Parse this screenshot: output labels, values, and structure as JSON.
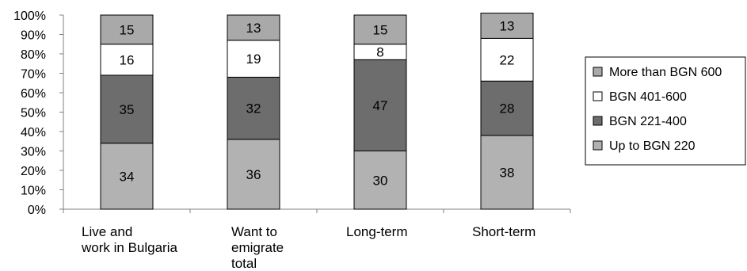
{
  "chart_data": {
    "type": "bar",
    "stacked": true,
    "percent": true,
    "categories": [
      [
        "Live and",
        "work in Bulgaria"
      ],
      [
        "Want to",
        "emigrate",
        "total"
      ],
      [
        "Long-term"
      ],
      [
        "Short-term"
      ]
    ],
    "series": [
      {
        "name": "Up to BGN 220",
        "values": [
          34,
          36,
          30,
          38
        ],
        "color": "#b2b2b2"
      },
      {
        "name": "BGN 221-400",
        "values": [
          35,
          32,
          47,
          28
        ],
        "color": "#6d6d6d"
      },
      {
        "name": "BGN 401-600",
        "values": [
          16,
          19,
          8,
          22
        ],
        "color": "#ffffff"
      },
      {
        "name": "More than BGN 600",
        "values": [
          15,
          13,
          15,
          13
        ],
        "color": "#a9a9a9"
      }
    ],
    "y_ticks": [
      "0%",
      "10%",
      "20%",
      "30%",
      "40%",
      "50%",
      "60%",
      "70%",
      "80%",
      "90%",
      "100%"
    ],
    "ylim": [
      0,
      100
    ],
    "legend_position": "right",
    "grid": false
  }
}
